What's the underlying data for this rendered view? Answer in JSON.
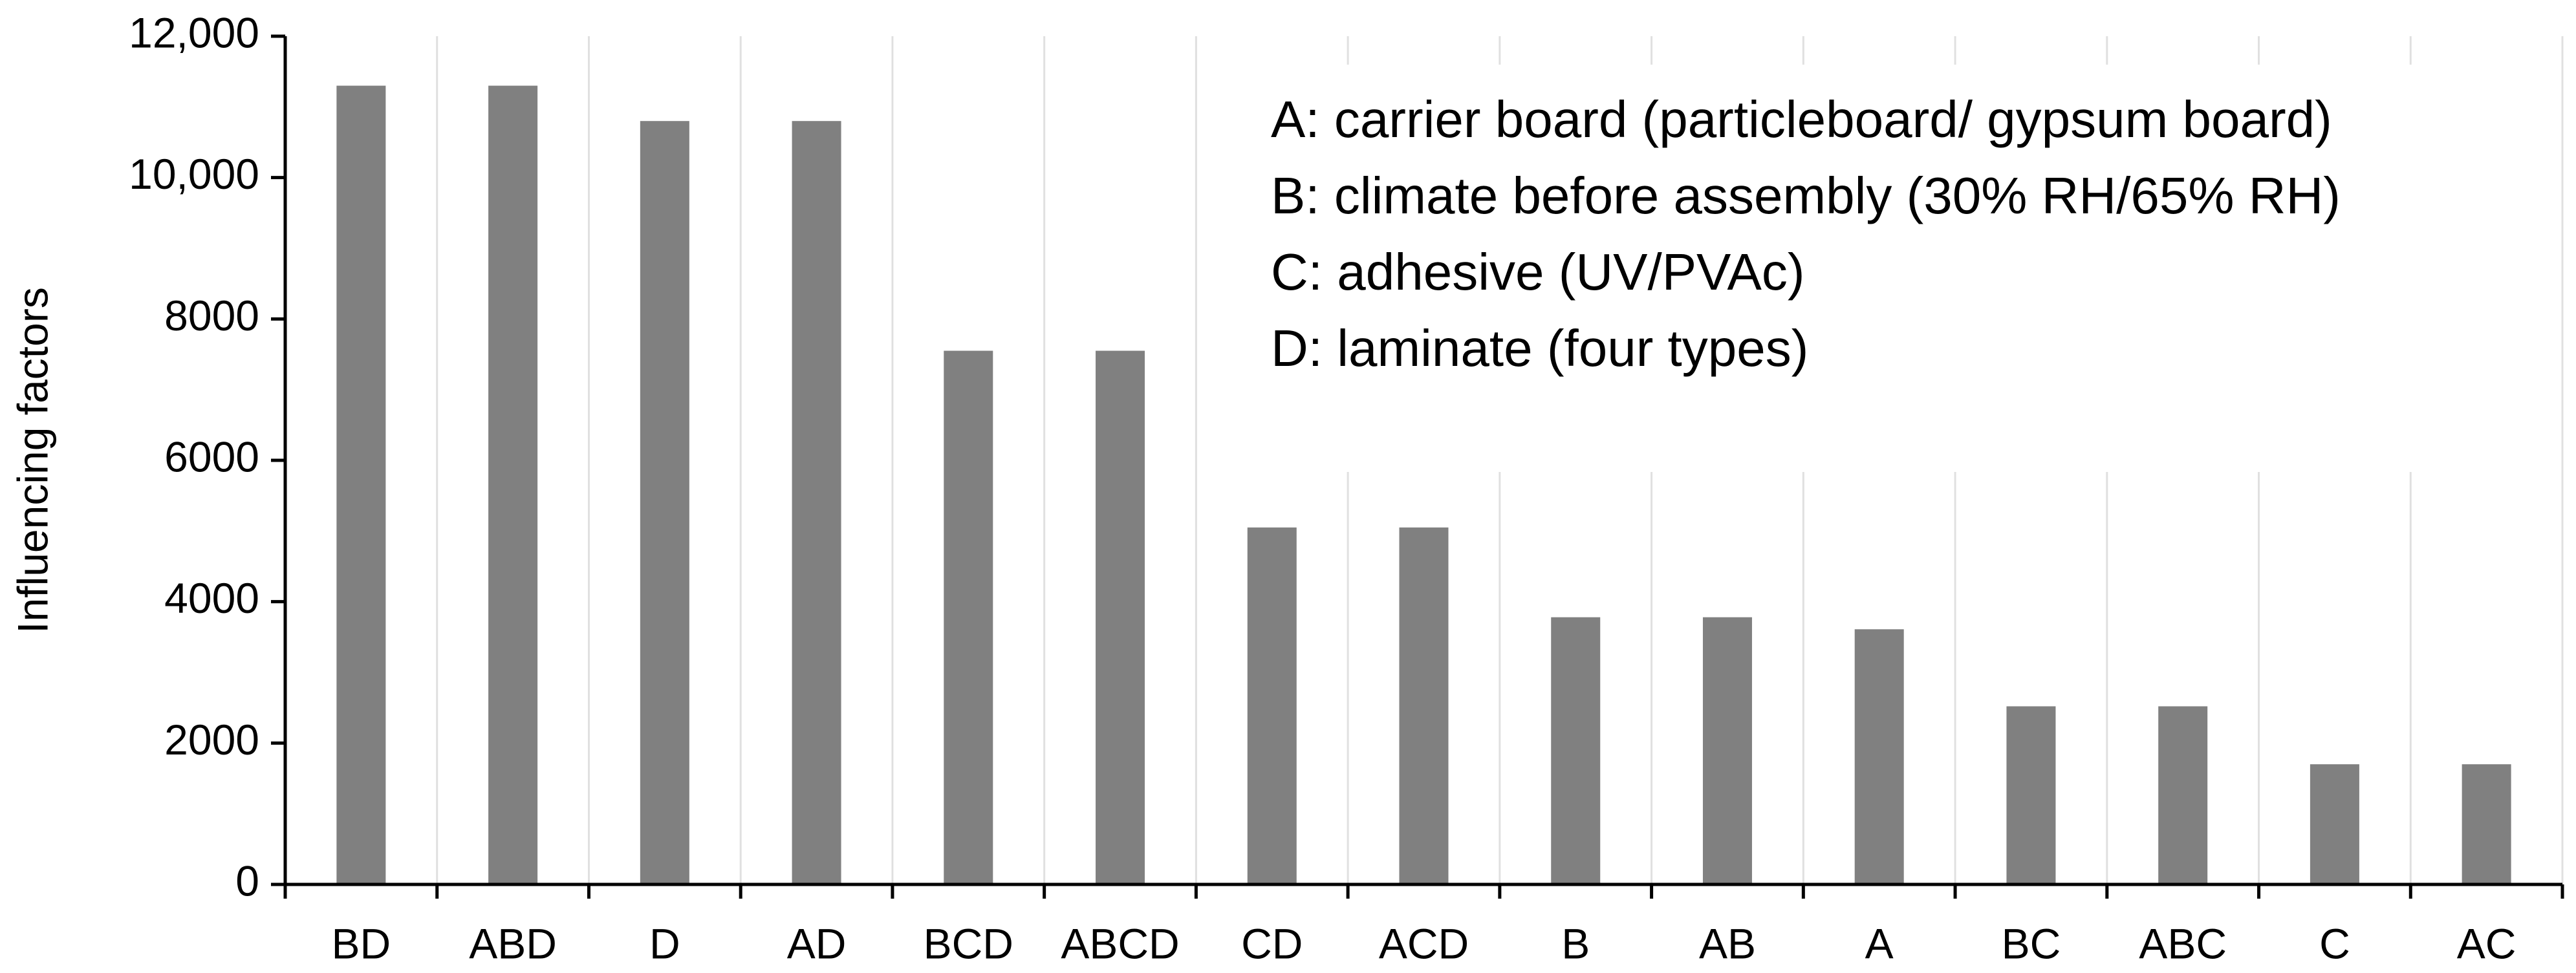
{
  "chart_data": {
    "type": "bar",
    "y_label": "Influencing factors",
    "categories": [
      "BD",
      "ABD",
      "D",
      "AD",
      "BCD",
      "ABCD",
      "CD",
      "ACD",
      "B",
      "AB",
      "A",
      "BC",
      "ABC",
      "C",
      "AC"
    ],
    "values": [
      11300,
      11300,
      10800,
      10800,
      7550,
      7550,
      5050,
      5050,
      3780,
      3780,
      3610,
      2520,
      2520,
      1700,
      1700
    ],
    "color": "#808080",
    "ylim": [
      0,
      12000
    ],
    "yticks": [
      0,
      2000,
      4000,
      6000,
      8000,
      {
        "value": 10000,
        "label": "10,000"
      },
      {
        "value": 12000,
        "label": "12,000"
      }
    ],
    "annotations": [
      "A: carrier board (particleboard/ gypsum board)",
      "B: climate before assembly (30% RH/65% RH)",
      "C: adhesive (UV/PVAc)",
      "D: laminate (four types)"
    ]
  }
}
